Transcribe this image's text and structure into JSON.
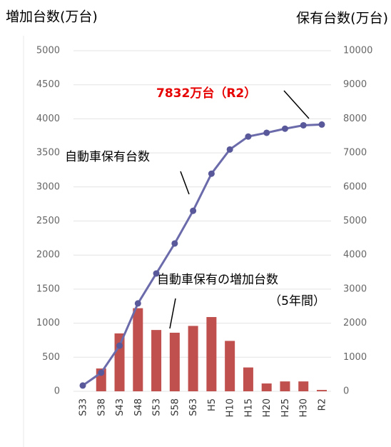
{
  "chart_data": {
    "type": "bar_line",
    "left_title": "増加台数(万台)",
    "right_title": "保有台数(万台)",
    "categories": [
      "S33",
      "S38",
      "S43",
      "S48",
      "S53",
      "S58",
      "S63",
      "H5",
      "H10",
      "H15",
      "H20",
      "H25",
      "H30",
      "R2"
    ],
    "series": [
      {
        "name": "自動車保有の増加台数",
        "type": "bar",
        "color": "#c0504d",
        "axis": "y",
        "values": [
          null,
          335,
          850,
          1220,
          900,
          860,
          960,
          1090,
          740,
          350,
          115,
          145,
          145,
          20
        ]
      },
      {
        "name": "自動車保有台数",
        "type": "line",
        "color": "#6b6bab",
        "axis": "y2",
        "values": [
          170,
          545,
          1340,
          2580,
          3460,
          4340,
          5300,
          6390,
          7100,
          7480,
          7590,
          7710,
          7810,
          7832
        ]
      }
    ],
    "annotations": [
      "7832万台（R2）",
      "自動車保有台数",
      "自動車保有の増加台数",
      "（5年間）"
    ],
    "ylim": [
      0,
      5000
    ],
    "yticks": [
      0,
      500,
      1000,
      1500,
      2000,
      2500,
      3000,
      3500,
      4000,
      4500,
      5000
    ],
    "y2lim": [
      0,
      10000
    ],
    "y2ticks": [
      0,
      1000,
      2000,
      3000,
      4000,
      5000,
      6000,
      7000,
      8000,
      9000,
      10000
    ],
    "grid": true
  }
}
